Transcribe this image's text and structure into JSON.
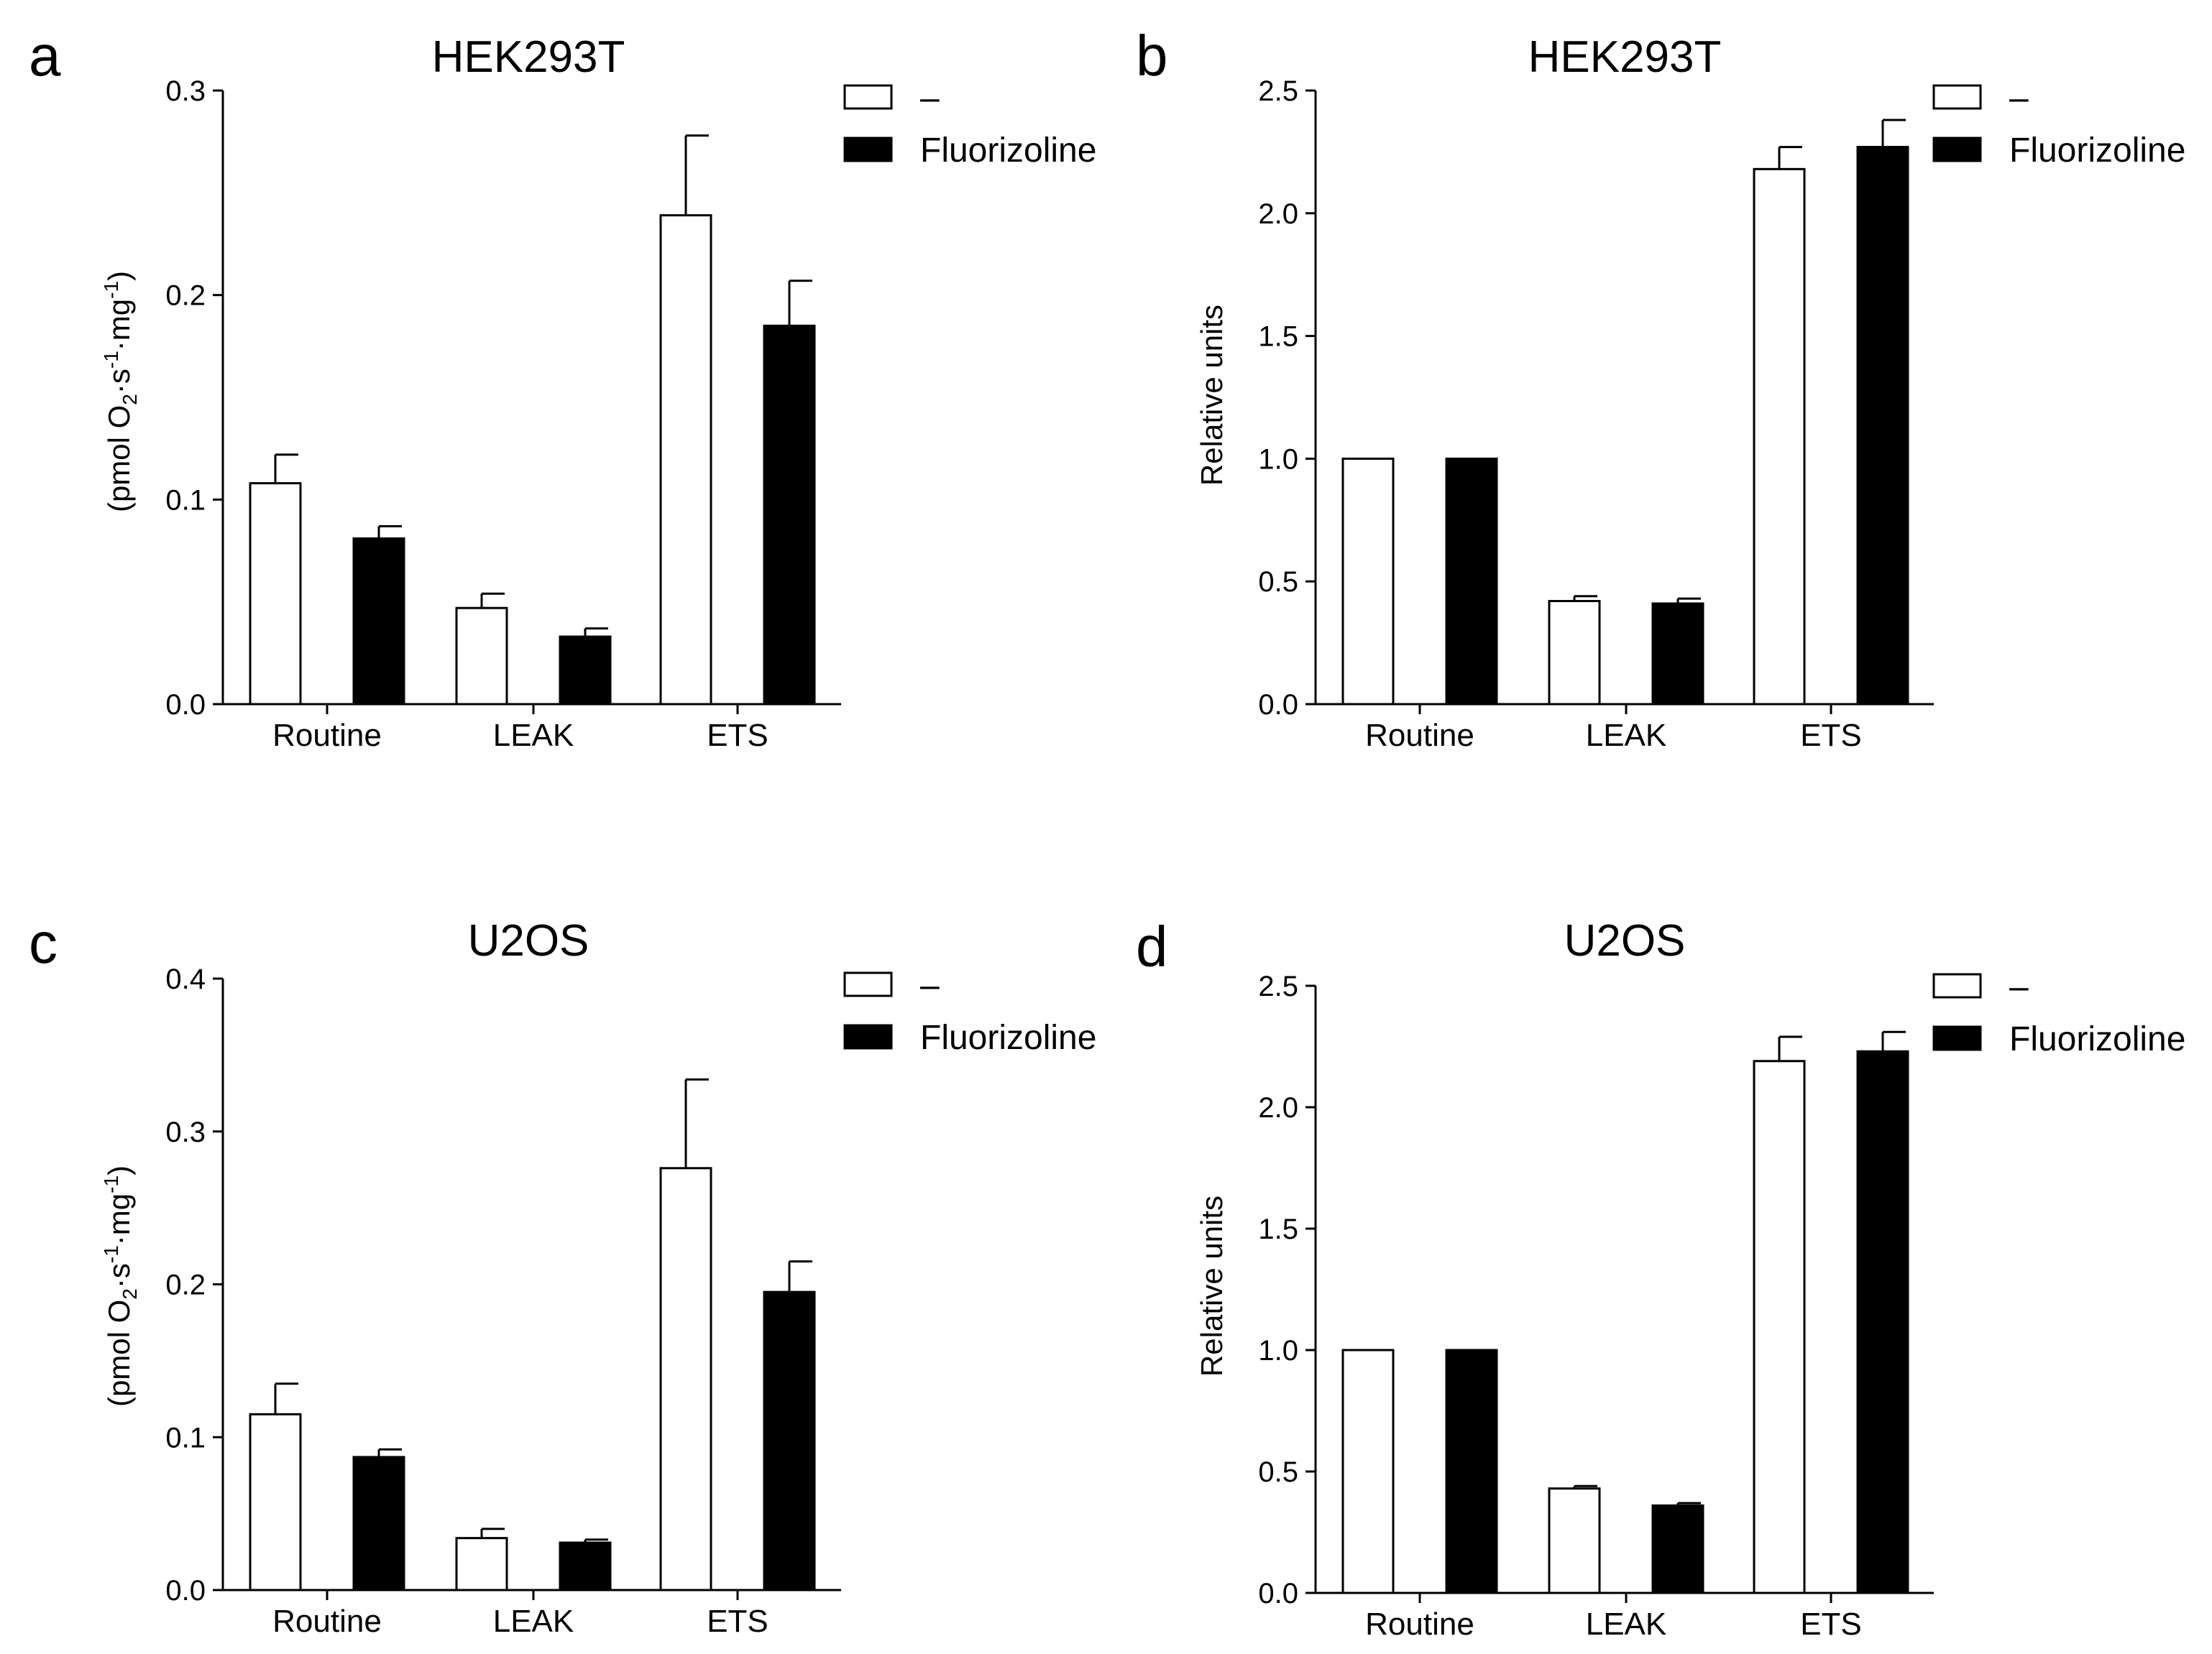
{
  "chart_data": [
    {
      "panel": "a",
      "type": "bar",
      "title": "HEK293T",
      "categories": [
        "Routine",
        "LEAK",
        "ETS"
      ],
      "ylabel": {
        "prefix": "(pmol O",
        "sub": "2",
        "mid": "·s",
        "sup1": "-1",
        "mid2": "·mg",
        "sup2": "-1",
        "suffix": ")"
      },
      "yticks": [
        "0.0",
        "0.1",
        "0.2",
        "0.3"
      ],
      "ylim": [
        0,
        0.3
      ],
      "series": [
        {
          "name": "–",
          "color": "#ffffff",
          "values": [
            0.108,
            0.047,
            0.239
          ],
          "errors": [
            0.014,
            0.007,
            0.039
          ]
        },
        {
          "name": "Fluorizoline",
          "color": "#000000",
          "values": [
            0.081,
            0.033,
            0.185
          ],
          "errors": [
            0.006,
            0.004,
            0.022
          ]
        }
      ]
    },
    {
      "panel": "b",
      "type": "bar",
      "title": "HEK293T",
      "categories": [
        "Routine",
        "LEAK",
        "ETS"
      ],
      "ylabel": {
        "text": "Relative units"
      },
      "yticks": [
        "0.0",
        "0.5",
        "1.0",
        "1.5",
        "2.0",
        "2.5"
      ],
      "ylim": [
        0,
        2.5
      ],
      "series": [
        {
          "name": "–",
          "color": "#ffffff",
          "values": [
            1.0,
            0.42,
            2.18
          ],
          "errors": [
            0,
            0.02,
            0.09
          ]
        },
        {
          "name": "Fluorizoline",
          "color": "#000000",
          "values": [
            1.0,
            0.41,
            2.27
          ],
          "errors": [
            0,
            0.02,
            0.11
          ]
        }
      ]
    },
    {
      "panel": "c",
      "type": "bar",
      "title": "U2OS",
      "categories": [
        "Routine",
        "LEAK",
        "ETS"
      ],
      "ylabel": {
        "prefix": "(pmol O",
        "sub": "2",
        "mid": "·s",
        "sup1": "-1",
        "mid2": "·mg",
        "sup2": "-1",
        "suffix": ")"
      },
      "yticks": [
        "0.0",
        "0.1",
        "0.2",
        "0.3",
        "0.4"
      ],
      "ylim": [
        0,
        0.4
      ],
      "series": [
        {
          "name": "–",
          "color": "#ffffff",
          "values": [
            0.115,
            0.034,
            0.276
          ],
          "errors": [
            0.02,
            0.006,
            0.058
          ]
        },
        {
          "name": "Fluorizoline",
          "color": "#000000",
          "values": [
            0.087,
            0.031,
            0.195
          ],
          "errors": [
            0.005,
            0.002,
            0.02
          ]
        }
      ]
    },
    {
      "panel": "d",
      "type": "bar",
      "title": "U2OS",
      "categories": [
        "Routine",
        "LEAK",
        "ETS"
      ],
      "ylabel": {
        "text": "Relative units"
      },
      "yticks": [
        "0.0",
        "0.5",
        "1.0",
        "1.5",
        "2.0",
        "2.5"
      ],
      "ylim": [
        0,
        2.5
      ],
      "series": [
        {
          "name": "–",
          "color": "#ffffff",
          "values": [
            1.0,
            0.43,
            2.19
          ],
          "errors": [
            0,
            0.01,
            0.1
          ]
        },
        {
          "name": "Fluorizoline",
          "color": "#000000",
          "values": [
            1.0,
            0.36,
            2.23
          ],
          "errors": [
            0,
            0.01,
            0.08
          ]
        }
      ]
    }
  ]
}
